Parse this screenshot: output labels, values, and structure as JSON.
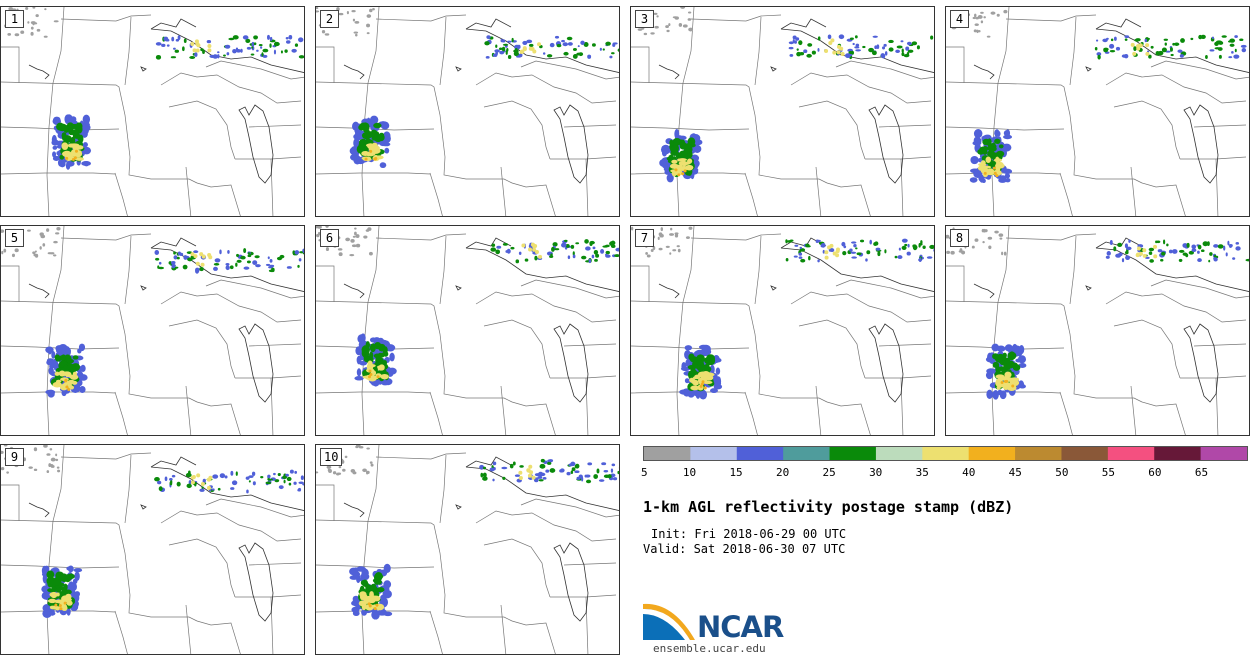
{
  "panels": [
    "1",
    "2",
    "3",
    "4",
    "5",
    "6",
    "7",
    "8",
    "9",
    "10"
  ],
  "colorbar": {
    "ticks": [
      "5",
      "10",
      "15",
      "20",
      "25",
      "30",
      "35",
      "40",
      "45",
      "50",
      "55",
      "60",
      "65"
    ],
    "colors": [
      "#a0a0a0",
      "#b4c0ea",
      "#5060d8",
      "#4f9c9c",
      "#0a8a0a",
      "#bcdcbc",
      "#ede070",
      "#f2b01e",
      "#bc8a30",
      "#8a5838",
      "#f45080",
      "#661838",
      "#b048a8"
    ]
  },
  "title": "1-km AGL reflectivity postage stamp (dBZ)",
  "init": "Init: Fri 2018-06-29 00 UTC",
  "valid": "Valid: Sat 2018-06-30 07 UTC",
  "logo": {
    "text": "NCAR"
  },
  "footer": "ensemble.ucar.edu"
}
